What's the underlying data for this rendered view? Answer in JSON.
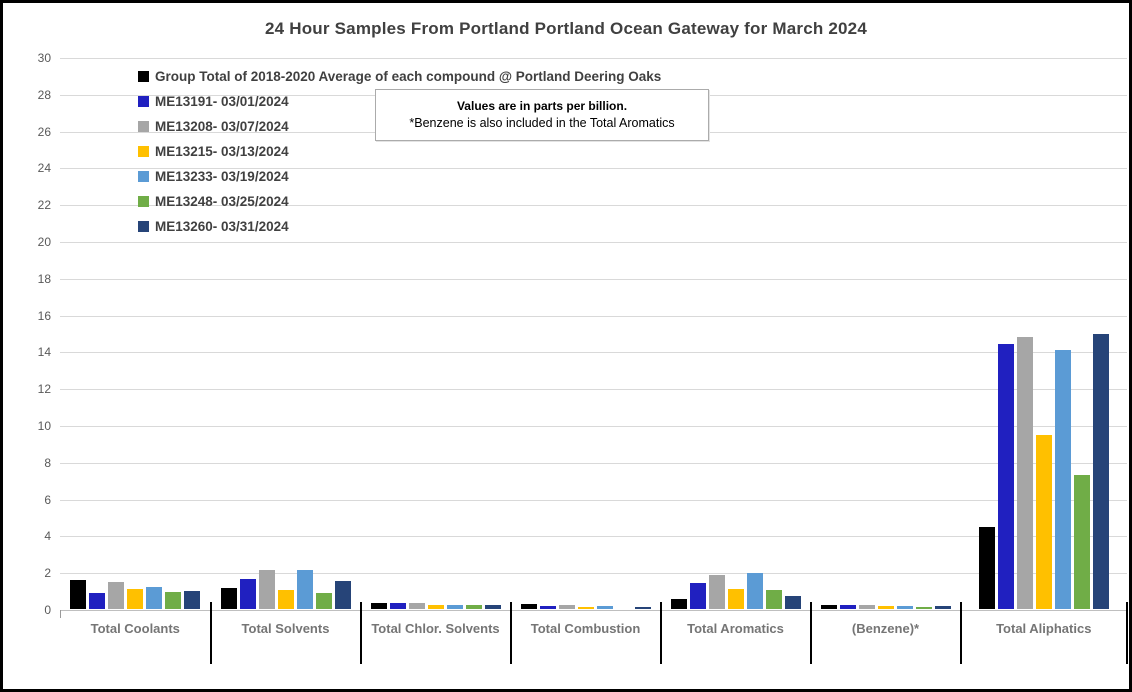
{
  "title": "24 Hour Samples From Portland Portland Ocean Gateway for March 2024",
  "note": {
    "line1": "Values are in parts per billion.",
    "line2": "*Benzene is also included in the Total Aromatics"
  },
  "colors": {
    "grid": "#d9d9d9",
    "axis_text": "#595959",
    "category_text": "#757575",
    "title_text": "#404040",
    "separator": "#000000"
  },
  "chart_data": {
    "type": "bar",
    "title": "24 Hour Samples From Portland Portland Ocean Gateway for March 2024",
    "unit": "parts per billion",
    "xlabel": "",
    "ylabel": "",
    "ylim": [
      0,
      30
    ],
    "ytick_step": 2,
    "grid": true,
    "legend_position": "top-left-inside",
    "categories": [
      "Total Coolants",
      "Total Solvents",
      "Total Chlor. Solvents",
      "Total Combustion",
      "Total Aromatics",
      "(Benzene)*",
      "Total Aliphatics"
    ],
    "series": [
      {
        "name": "Group Total of 2018-2020 Average of each compound @ Portland Deering Oaks",
        "color": "#000000",
        "values": [
          1.55,
          1.15,
          0.35,
          0.25,
          0.55,
          0.2,
          4.45
        ]
      },
      {
        "name": "ME13191- 03/01/2024",
        "color": "#2020c0",
        "values": [
          0.85,
          1.65,
          0.3,
          0.15,
          1.4,
          0.2,
          14.4
        ]
      },
      {
        "name": "ME13208- 03/07/2024",
        "color": "#a6a6a6",
        "values": [
          1.45,
          2.1,
          0.3,
          0.2,
          1.85,
          0.2,
          14.8
        ]
      },
      {
        "name": "ME13215- 03/13/2024",
        "color": "#ffc000",
        "values": [
          1.1,
          1.05,
          0.2,
          0.1,
          1.1,
          0.15,
          9.45
        ]
      },
      {
        "name": "ME13233- 03/19/2024",
        "color": "#5b9bd5",
        "values": [
          1.2,
          2.1,
          0.2,
          0.15,
          1.95,
          0.15,
          14.1
        ]
      },
      {
        "name": "ME13248- 03/25/2024",
        "color": "#70ad47",
        "values": [
          0.95,
          0.85,
          0.2,
          0,
          1.05,
          0.1,
          7.3
        ]
      },
      {
        "name": "ME13260- 03/31/2024",
        "color": "#264478",
        "values": [
          1.0,
          1.5,
          0.2,
          0.1,
          0.7,
          0.15,
          14.95
        ]
      }
    ]
  }
}
